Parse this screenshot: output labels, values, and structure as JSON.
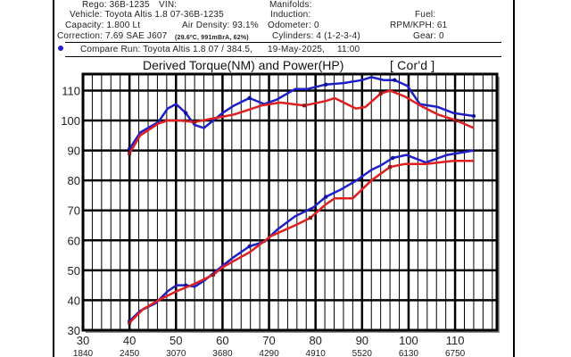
{
  "header": {
    "rego": "Rego: 36B-1235",
    "vin": "VIN:",
    "manifolds": "Manifolds:",
    "vehicle": "Vehicle: Toyota Altis 1.8 07-36B-1235",
    "induction": "Induction:",
    "fuel": "Fuel:",
    "capacity": "Capacity: 1.800 Lt",
    "air_density": "Air Density: 93.1%",
    "odometer": "Odometer: 0",
    "rpm_kph": "RPM/KPH: 61",
    "correction": "Correction: 7.69 SAE J607",
    "correction_detail": "(29.6ºC, 991mBrA, 62%)",
    "cylinders": "Cylinders: 4 (1-2-3-4)",
    "gear": "Gear: 0",
    "compare_run": "Compare Run:  Toyota Altis 1.8 07 / 384.5,",
    "compare_date": "19-May-2025,",
    "compare_time": "11:00"
  },
  "colors": {
    "blue": "#1f1fc8",
    "red": "#e02020",
    "grid": "#000000"
  },
  "chart_data": {
    "type": "line",
    "title": "Derived Torque(NM) and Power(HP)",
    "title_suffix": "[ Cor'd ]",
    "xlim": [
      30,
      119
    ],
    "ylim": [
      30,
      115.5
    ],
    "grid": true,
    "x_ticks": [
      30,
      40,
      50,
      60,
      70,
      80,
      90,
      100,
      110
    ],
    "x_rpm_labels": [
      "1840",
      "2450",
      "3070",
      "3680",
      "4290",
      "4910",
      "5520",
      "6130",
      "6750"
    ],
    "y_ticks": [
      30,
      40,
      50,
      60,
      70,
      80,
      90,
      100,
      110
    ],
    "series": [
      {
        "color": "blue",
        "x": [
          40,
          42.3,
          46.2,
          48.2,
          50,
          52.1,
          54,
          56,
          60,
          62.5,
          65.8,
          69,
          71.7,
          75.6,
          78.2,
          82.2,
          86,
          90,
          92,
          94.6,
          97,
          99.8,
          102.4,
          106.3,
          109.6,
          114
        ],
        "y": [
          90.5,
          96,
          99.5,
          104,
          105.5,
          102.5,
          98.5,
          97.5,
          102.5,
          105,
          107.5,
          105.5,
          107,
          110.5,
          110.5,
          112,
          112.5,
          113.5,
          114.5,
          113.5,
          113.5,
          111.5,
          105.5,
          104.5,
          102.5,
          101.5
        ]
      },
      {
        "color": "red",
        "x": [
          40,
          42.3,
          46.2,
          48.2,
          50.8,
          54,
          57.3,
          62.5,
          68.4,
          72.4,
          77.6,
          82.2,
          84.1,
          88.7,
          90.7,
          94,
          96,
          99.2,
          103.1,
          106.3,
          110.3,
          114
        ],
        "y": [
          89,
          95,
          99,
          100,
          100,
          99.5,
          100.5,
          102,
          105,
          106,
          105,
          106.5,
          107.5,
          104,
          104.5,
          109,
          110,
          108,
          104.5,
          102,
          100,
          97.5
        ]
      },
      {
        "color": "blue",
        "x": [
          40,
          42.3,
          45.6,
          48.2,
          50.1,
          52.1,
          54,
          56,
          60,
          62.5,
          65.8,
          69,
          71.7,
          75.6,
          79.5,
          82.2,
          85.5,
          88.8,
          92,
          94,
          96.6,
          99.5,
          103.7,
          108.3,
          114
        ],
        "y": [
          33,
          36.5,
          39,
          43,
          45,
          45,
          44.5,
          46.5,
          51.5,
          54.5,
          58,
          59.5,
          63.5,
          68,
          71,
          74.5,
          77,
          80,
          83.5,
          85,
          87.5,
          88.5,
          86,
          88.5,
          90
        ]
      },
      {
        "color": "red",
        "x": [
          40,
          42.9,
          46.2,
          50.1,
          54,
          58,
          60,
          65.8,
          70.5,
          75.6,
          78.9,
          82.2,
          84.1,
          88,
          92,
          96,
          99.2,
          103.7,
          109.6,
          114
        ],
        "y": [
          32.5,
          37,
          40,
          43,
          45.5,
          48.5,
          51,
          56,
          61.5,
          65,
          67.5,
          72,
          74,
          74,
          80,
          84.5,
          85.5,
          85.5,
          86.5,
          86.5
        ]
      }
    ]
  }
}
